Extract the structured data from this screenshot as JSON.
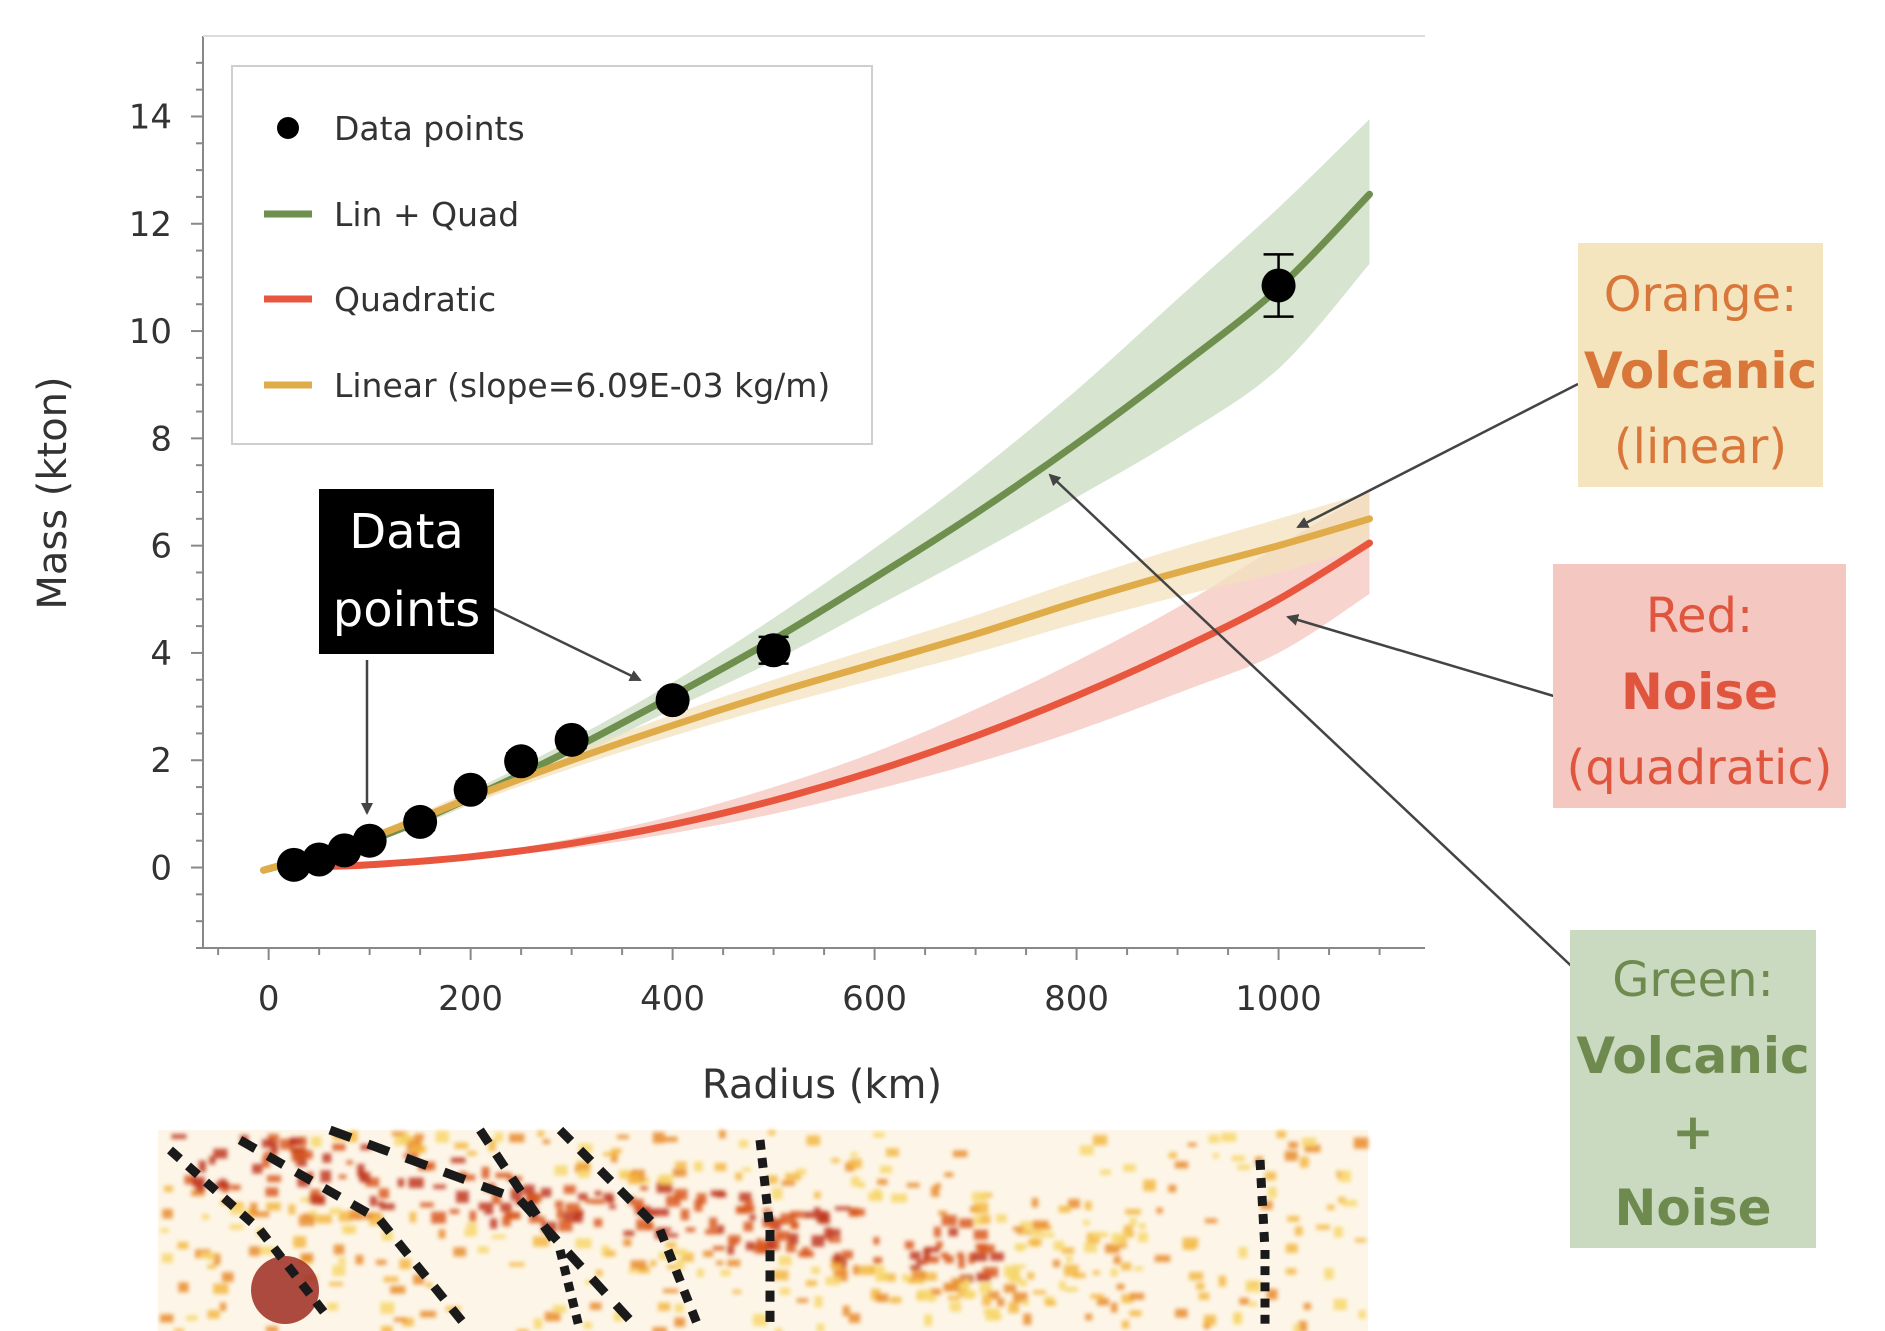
{
  "chart_data": {
    "type": "line",
    "xlabel": "Radius (km)",
    "ylabel": "Mass (kton)",
    "xlim": [
      -65,
      1145
    ],
    "ylim": [
      -1.5,
      15.5
    ],
    "x_ticks": [
      0,
      200,
      400,
      600,
      800,
      1000
    ],
    "y_ticks": [
      0,
      2,
      4,
      6,
      8,
      10,
      12,
      14
    ],
    "grid": false,
    "legend_position": "top-left",
    "legend": [
      "Data points",
      "Lin + Quad",
      "Quadratic",
      "Linear (slope=6.09E-03 kg/m)"
    ],
    "data_points": {
      "name": "Data points",
      "color": "#000000",
      "x": [
        25,
        50,
        75,
        100,
        150,
        200,
        250,
        300,
        400,
        500,
        1000
      ],
      "y": [
        0.05,
        0.15,
        0.32,
        0.5,
        0.85,
        1.45,
        1.98,
        2.38,
        3.12,
        4.05,
        10.85
      ],
      "y_err": [
        0.05,
        0.05,
        0.08,
        0.1,
        0.15,
        0.15,
        0.15,
        0.15,
        0.15,
        0.25,
        0.58
      ]
    },
    "series": [
      {
        "name": "Lin + Quad",
        "color": "#6e8f4e",
        "band_color": "#c9dcc0",
        "x": [
          -5,
          100,
          200,
          300,
          400,
          500,
          600,
          700,
          800,
          900,
          1000,
          1090
        ],
        "y": [
          -0.05,
          0.5,
          1.3,
          2.2,
          3.2,
          4.25,
          5.4,
          6.6,
          7.9,
          9.3,
          10.8,
          12.55
        ],
        "band_upper": [
          0.0,
          0.56,
          1.42,
          2.38,
          3.45,
          4.65,
          5.95,
          7.35,
          8.9,
          10.6,
          12.3,
          13.95
        ],
        "band_lower": [
          -0.1,
          0.44,
          1.18,
          2.02,
          2.95,
          3.85,
          4.85,
          5.85,
          6.9,
          8.0,
          9.3,
          11.25
        ]
      },
      {
        "name": "Quadratic",
        "color": "#e9563e",
        "band_color": "#f5c5bd",
        "x": [
          50,
          100,
          200,
          300,
          400,
          500,
          600,
          700,
          800,
          900,
          1000,
          1090
        ],
        "y": [
          0.02,
          0.05,
          0.2,
          0.45,
          0.8,
          1.25,
          1.8,
          2.45,
          3.2,
          4.05,
          5.0,
          6.05
        ],
        "band_upper": [
          0.03,
          0.07,
          0.24,
          0.54,
          0.96,
          1.5,
          2.15,
          2.95,
          3.85,
          4.85,
          6.0,
          7.0
        ],
        "band_lower": [
          0.01,
          0.03,
          0.16,
          0.36,
          0.64,
          1.0,
          1.45,
          1.95,
          2.55,
          3.25,
          4.0,
          5.1
        ]
      },
      {
        "name": "Linear (slope=6.09E-03 kg/m)",
        "color": "#e0ac49",
        "band_color": "#f3e2bd",
        "x": [
          -5,
          100,
          200,
          300,
          400,
          500,
          600,
          700,
          800,
          900,
          1000,
          1090
        ],
        "y": [
          -0.05,
          0.55,
          1.3,
          2.0,
          2.65,
          3.25,
          3.8,
          4.35,
          4.95,
          5.5,
          6.0,
          6.5
        ],
        "band_upper": [
          0.0,
          0.62,
          1.42,
          2.15,
          2.85,
          3.5,
          4.1,
          4.7,
          5.35,
          5.95,
          6.5,
          7.0
        ],
        "band_lower": [
          -0.1,
          0.48,
          1.18,
          1.85,
          2.45,
          3.0,
          3.5,
          4.0,
          4.55,
          5.05,
          5.5,
          6.0
        ]
      }
    ],
    "annotations": {
      "data_points_box": {
        "lines": [
          "Data",
          "points"
        ]
      },
      "orange_box": {
        "line1": "Orange:",
        "line2": "Volcanic",
        "line3": "(linear)"
      },
      "red_box": {
        "line1": "Red:",
        "line2": "Noise",
        "line3": "(quadratic)"
      },
      "green_box": {
        "line1": "Green:",
        "line2": "Volcanic",
        "line3": "+",
        "line4": "Noise"
      }
    }
  }
}
